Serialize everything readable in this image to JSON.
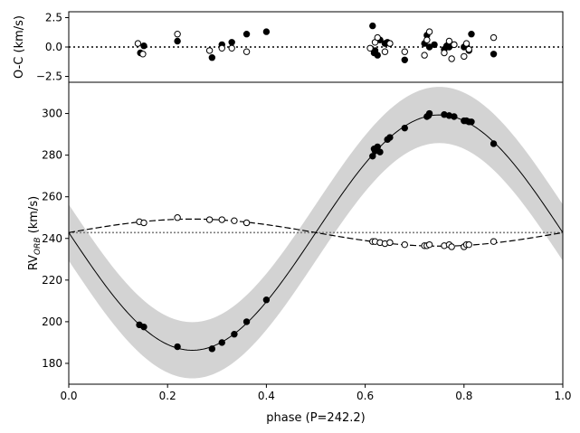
{
  "chart_data": [
    {
      "type": "scatter",
      "panel": "residuals",
      "ylabel": "O-C (km/s)",
      "ylim": [
        -3.0,
        3.0
      ],
      "yticks": [
        2.5,
        0.0,
        -2.5
      ],
      "ytick_labels": [
        "2.5",
        "0.0",
        "−2.5"
      ],
      "zero_line": 0.0,
      "series": [
        {
          "name": "primary residuals (filled)",
          "filled": true,
          "x": [
            0.145,
            0.152,
            0.22,
            0.29,
            0.31,
            0.33,
            0.36,
            0.4,
            0.615,
            0.618,
            0.62,
            0.625,
            0.63,
            0.64,
            0.645,
            0.65,
            0.68,
            0.72,
            0.725,
            0.73,
            0.74,
            0.76,
            0.765,
            0.77,
            0.78,
            0.8,
            0.805,
            0.81,
            0.815,
            0.86
          ],
          "y": [
            -0.5,
            0.1,
            0.5,
            -0.9,
            0.2,
            0.4,
            1.1,
            1.3,
            1.8,
            -0.5,
            -0.3,
            -0.7,
            0.6,
            0.3,
            0.4,
            0.3,
            -1.1,
            0.3,
            1.0,
            0.0,
            0.2,
            -0.2,
            0.1,
            0.0,
            0.2,
            0.0,
            0.1,
            -0.3,
            1.1,
            -0.6
          ]
        },
        {
          "name": "secondary residuals (open)",
          "filled": false,
          "x": [
            0.14,
            0.15,
            0.22,
            0.285,
            0.31,
            0.33,
            0.36,
            0.61,
            0.62,
            0.625,
            0.64,
            0.65,
            0.68,
            0.72,
            0.725,
            0.73,
            0.76,
            0.77,
            0.775,
            0.78,
            0.8,
            0.805,
            0.81,
            0.86
          ],
          "y": [
            0.3,
            -0.6,
            1.1,
            -0.3,
            -0.1,
            -0.1,
            -0.4,
            -0.1,
            0.4,
            0.8,
            -0.4,
            0.3,
            -0.4,
            -0.7,
            0.6,
            1.3,
            -0.5,
            0.5,
            -1.0,
            0.2,
            -0.8,
            0.3,
            -0.2,
            0.8
          ]
        }
      ]
    },
    {
      "type": "scatter",
      "panel": "radial-velocity",
      "xlabel": "phase (P=242.2)",
      "ylabel_main": "RV",
      "ylabel_sub": "ORB",
      "ylabel_unit": " (km/s)",
      "xlim": [
        0.0,
        1.0
      ],
      "ylim": [
        170,
        315
      ],
      "xticks": [
        0.0,
        0.2,
        0.4,
        0.6,
        0.8,
        1.0
      ],
      "xtick_labels": [
        "0.0",
        "0.2",
        "0.4",
        "0.6",
        "0.8",
        "1.0"
      ],
      "yticks": [
        180,
        200,
        220,
        240,
        260,
        280,
        300
      ],
      "ytick_labels": [
        "180",
        "200",
        "220",
        "240",
        "260",
        "280",
        "300"
      ],
      "systemic_velocity": 242.8,
      "primary_model": {
        "gamma": 242.8,
        "K": 56.5,
        "phase_of_min": 0.25,
        "band_halfwidth": 13.5
      },
      "secondary_model": {
        "gamma": 242.8,
        "K": 6.5,
        "phase_of_max": 0.25
      },
      "series": [
        {
          "name": "primary RV (filled)",
          "filled": true,
          "x": [
            0.143,
            0.152,
            0.22,
            0.29,
            0.31,
            0.335,
            0.36,
            0.4,
            0.615,
            0.618,
            0.62,
            0.625,
            0.63,
            0.645,
            0.65,
            0.68,
            0.725,
            0.728,
            0.73,
            0.76,
            0.77,
            0.78,
            0.8,
            0.805,
            0.81,
            0.815,
            0.86
          ],
          "y": [
            198.5,
            197.5,
            188,
            187,
            190,
            194,
            200,
            210.5,
            279.5,
            283,
            282,
            284,
            281.5,
            287.5,
            288.5,
            293,
            298.5,
            299,
            300,
            299.5,
            299,
            298.5,
            296.5,
            296.5,
            296,
            296,
            285.5
          ]
        },
        {
          "name": "secondary RV (open)",
          "filled": false,
          "x": [
            0.143,
            0.152,
            0.22,
            0.285,
            0.31,
            0.335,
            0.36,
            0.615,
            0.62,
            0.63,
            0.64,
            0.65,
            0.68,
            0.72,
            0.725,
            0.73,
            0.76,
            0.77,
            0.775,
            0.8,
            0.805,
            0.81,
            0.86
          ],
          "y": [
            248,
            247.5,
            250,
            249,
            249,
            248.5,
            247.5,
            238.5,
            238.5,
            238,
            237.5,
            238,
            237,
            236.5,
            236.5,
            237,
            236.5,
            237,
            236,
            236,
            237,
            237,
            238.5
          ]
        }
      ]
    }
  ]
}
